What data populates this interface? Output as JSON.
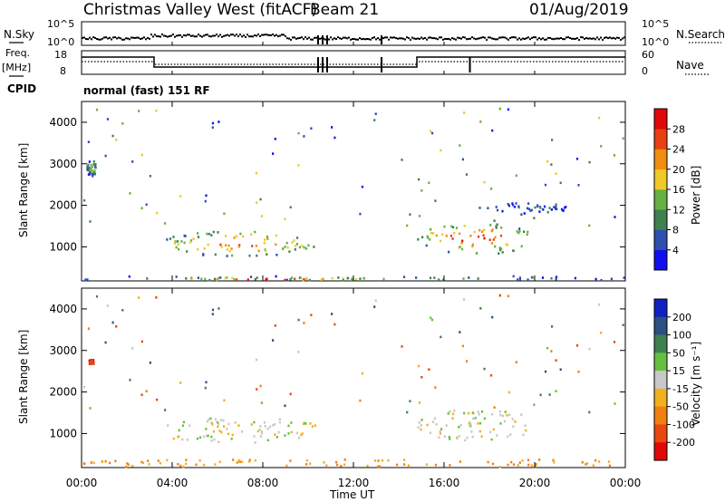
{
  "header": {
    "station": "Christmas Valley West (fitACF)",
    "beam": "Beam 21",
    "date": "01/Aug/2019",
    "mode": "normal (fast) 151 RF"
  },
  "side_labels": {
    "nsky": "N.Sky",
    "nsearch": "N.Search",
    "freq_top": "Freq.",
    "freq_unit": "[MHz]",
    "nave": "Nave",
    "cpid": "CPID"
  },
  "small_panels": {
    "noise_ticks_left": [
      "10^5",
      "10^0"
    ],
    "noise_ticks_right": [
      "10^5",
      "10^0"
    ],
    "freq_ticks_left": [
      "18",
      "8"
    ],
    "nave_ticks_right": [
      "60",
      "0"
    ]
  },
  "chart_data": [
    {
      "type": "heatmap",
      "title": "",
      "ylabel": "Slant Range [km]",
      "xlabel": "Time UT",
      "ylim": [
        180,
        4500
      ],
      "xlim": [
        "00:00",
        "24:00"
      ],
      "x_ticks": [
        "00:00",
        "04:00",
        "08:00",
        "12:00",
        "16:00",
        "20:00",
        "00:00"
      ],
      "y_ticks": [
        1000,
        2000,
        3000,
        4000
      ],
      "colorbar": {
        "label": "Power [dB]",
        "ticks": [
          4,
          8,
          12,
          16,
          20,
          24,
          28
        ],
        "range": [
          0,
          30
        ],
        "colors": [
          "#1010ee",
          "#2c4fb0",
          "#3e8050",
          "#66b044",
          "#f0c828",
          "#f08c10",
          "#e84010",
          "#e00808"
        ]
      },
      "features": [
        {
          "region": "near-range band",
          "time_h": [
            0,
            24
          ],
          "range_km": [
            200,
            320
          ],
          "power_db": 10
        },
        {
          "region": "strong near-range band",
          "time_h": [
            3.8,
            12.5
          ],
          "range_km": [
            200,
            290
          ],
          "power_db": 25
        },
        {
          "region": "morning echo",
          "time_h": [
            3.5,
            10.5
          ],
          "range_km": [
            800,
            1400
          ],
          "power_db": 20
        },
        {
          "region": "afternoon echo",
          "time_h": [
            14.8,
            19.8
          ],
          "range_km": [
            850,
            1600
          ],
          "power_db": 22
        },
        {
          "region": "early echo",
          "time_h": [
            0.2,
            0.6
          ],
          "range_km": [
            2700,
            3100
          ],
          "power_db": 12
        },
        {
          "region": "far echo",
          "time_h": [
            17.5,
            21.5
          ],
          "range_km": [
            1800,
            2100
          ],
          "power_db": 6
        }
      ]
    },
    {
      "type": "heatmap",
      "title": "",
      "ylabel": "Slant Range [km]",
      "xlabel": "Time UT",
      "ylim": [
        180,
        4500
      ],
      "x_ticks": [
        "00:00",
        "04:00",
        "08:00",
        "12:00",
        "16:00",
        "20:00",
        "00:00"
      ],
      "y_ticks": [
        1000,
        2000,
        3000,
        4000
      ],
      "colorbar": {
        "label": "Velocity [m s⁻¹]",
        "ticks": [
          200,
          100,
          50,
          15,
          -15,
          -50,
          -100,
          -200
        ],
        "colors": [
          "#1020c0",
          "#2c5080",
          "#3e8050",
          "#66c040",
          "#c8c8c8",
          "#f0b020",
          "#f08010",
          "#e84810",
          "#e00808"
        ]
      },
      "features": [
        {
          "region": "near-range band",
          "time_h": [
            0,
            24
          ],
          "range_km": [
            200,
            400
          ],
          "velocity_ms": -50
        },
        {
          "region": "morning echo",
          "time_h": [
            3.5,
            10.5
          ],
          "range_km": [
            800,
            1400
          ],
          "velocity_ms": 0
        },
        {
          "region": "afternoon echo",
          "time_h": [
            14.8,
            19.8
          ],
          "range_km": [
            850,
            1600
          ],
          "velocity_ms": 0
        },
        {
          "region": "early echo",
          "time_h": [
            0.3,
            0.5
          ],
          "range_km": [
            2700,
            2800
          ],
          "velocity_ms": -200
        }
      ]
    }
  ]
}
